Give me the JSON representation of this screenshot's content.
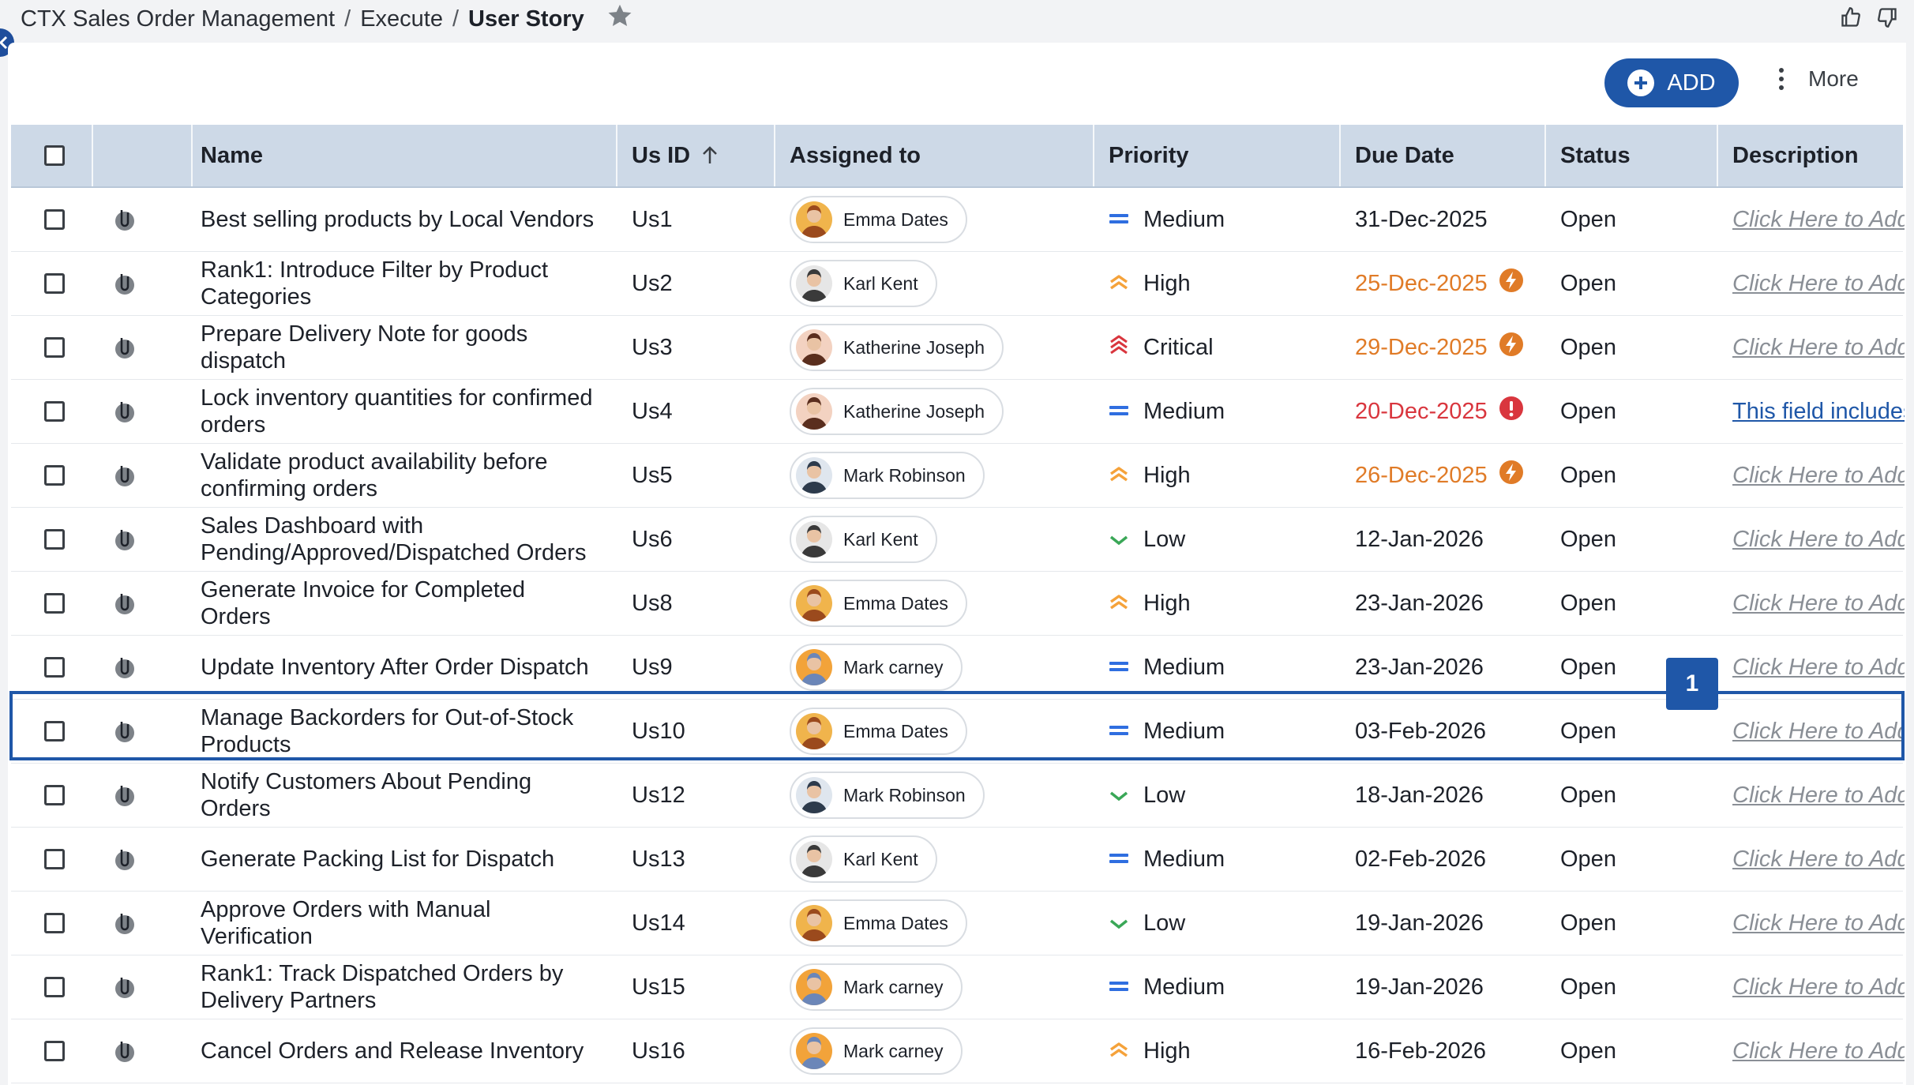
{
  "breadcrumb": {
    "app": "CTX Sales Order Management",
    "section": "Execute",
    "current": "User Story",
    "sep": "/"
  },
  "toolbar": {
    "add_label": "ADD",
    "more_label": "More"
  },
  "columns": {
    "name": "Name",
    "usid": "Us ID",
    "assigned": "Assigned to",
    "priority": "Priority",
    "due": "Due Date",
    "status": "Status",
    "description": "Description"
  },
  "annotation": {
    "marker_label": "1"
  },
  "colors": {
    "accent": "#1f57a8",
    "warn": "#e07b27",
    "overdue": "#d9363e",
    "medium": "#2f6ee0",
    "high": "#f5a23a",
    "critical": "#d9363e",
    "low": "#3aa757"
  },
  "rows": [
    {
      "name": "Best selling products by Local Vendors",
      "id": "Us1",
      "assignee": "Emma Dates",
      "priority": "Medium",
      "due": "31-Dec-2025",
      "due_state": "normal",
      "status": "Open",
      "description": "Click Here to Add"
    },
    {
      "name": "Rank1: Introduce Filter by Product Categories",
      "id": "Us2",
      "assignee": "Karl Kent",
      "priority": "High",
      "due": "25-Dec-2025",
      "due_state": "warn",
      "status": "Open",
      "description": "Click Here to Add"
    },
    {
      "name": "Prepare Delivery Note for goods dispatch",
      "id": "Us3",
      "assignee": "Katherine Joseph",
      "priority": "Critical",
      "due": "29-Dec-2025",
      "due_state": "warn",
      "status": "Open",
      "description": "Click Here to Add"
    },
    {
      "name": "Lock inventory quantities for confirmed orders",
      "id": "Us4",
      "assignee": "Katherine Joseph",
      "priority": "Medium",
      "due": "20-Dec-2025",
      "due_state": "overdue",
      "status": "Open",
      "description": "This field includes"
    },
    {
      "name": "Validate product availability before confirming orders",
      "id": "Us5",
      "assignee": "Mark Robinson",
      "priority": "High",
      "due": "26-Dec-2025",
      "due_state": "warn",
      "status": "Open",
      "description": "Click Here to Add"
    },
    {
      "name": "Sales Dashboard with Pending/Approved/Dispatched Orders",
      "id": "Us6",
      "assignee": "Karl Kent",
      "priority": "Low",
      "due": "12-Jan-2026",
      "due_state": "normal",
      "status": "Open",
      "description": "Click Here to Add"
    },
    {
      "name": "Generate Invoice for Completed Orders",
      "id": "Us8",
      "assignee": "Emma Dates",
      "priority": "High",
      "due": "23-Jan-2026",
      "due_state": "normal",
      "status": "Open",
      "description": "Click Here to Add"
    },
    {
      "name": "Update Inventory After Order Dispatch",
      "id": "Us9",
      "assignee": "Mark carney",
      "priority": "Medium",
      "due": "23-Jan-2026",
      "due_state": "normal",
      "status": "Open",
      "description": "Click Here to Add"
    },
    {
      "name": "Manage Backorders for Out-of-Stock Products",
      "id": "Us10",
      "assignee": "Emma Dates",
      "priority": "Medium",
      "due": "03-Feb-2026",
      "due_state": "normal",
      "status": "Open",
      "description": "Click Here to Add"
    },
    {
      "name": "Notify Customers About Pending Orders",
      "id": "Us12",
      "assignee": "Mark Robinson",
      "priority": "Low",
      "due": "18-Jan-2026",
      "due_state": "normal",
      "status": "Open",
      "description": "Click Here to Add"
    },
    {
      "name": "Generate Packing List for Dispatch",
      "id": "Us13",
      "assignee": "Karl Kent",
      "priority": "Medium",
      "due": "02-Feb-2026",
      "due_state": "normal",
      "status": "Open",
      "description": "Click Here to Add"
    },
    {
      "name": "Approve Orders with Manual Verification",
      "id": "Us14",
      "assignee": "Emma Dates",
      "priority": "Low",
      "due": "19-Jan-2026",
      "due_state": "normal",
      "status": "Open",
      "description": "Click Here to Add"
    },
    {
      "name": "Rank1: Track Dispatched Orders by Delivery Partners",
      "id": "Us15",
      "assignee": "Mark carney",
      "priority": "Medium",
      "due": "19-Jan-2026",
      "due_state": "normal",
      "status": "Open",
      "description": "Click Here to Add"
    },
    {
      "name": "Cancel Orders and Release Inventory",
      "id": "Us16",
      "assignee": "Mark carney",
      "priority": "High",
      "due": "16-Feb-2026",
      "due_state": "normal",
      "status": "Open",
      "description": "Click Here to Add"
    }
  ]
}
